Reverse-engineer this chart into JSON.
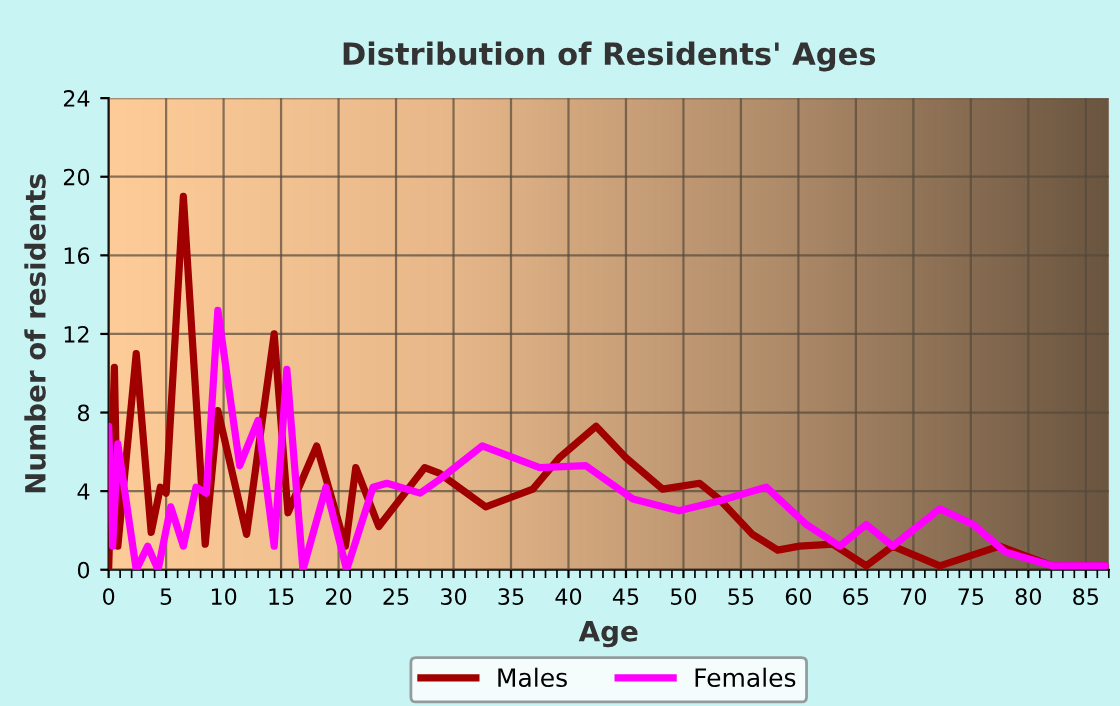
{
  "chart_data": {
    "type": "line",
    "title": "Distribution of Residents' Ages",
    "xlabel": "Age",
    "ylabel": "Number of residents",
    "xlim": [
      0,
      87
    ],
    "xticks": [
      0,
      5,
      10,
      15,
      20,
      25,
      30,
      35,
      40,
      45,
      50,
      55,
      60,
      65,
      70,
      75,
      80,
      85
    ],
    "ylim": [
      0,
      24
    ],
    "yticks": [
      0,
      4,
      8,
      12,
      16,
      20,
      24
    ],
    "grid": true,
    "legend": "bottom",
    "marker": "none",
    "line_style": "solid",
    "series": [
      {
        "name": "Males",
        "color": "#a00000",
        "x": [
          0,
          0.5,
          0.8,
          2.4,
          3.7,
          4.5,
          5.0,
          6.5,
          8.4,
          9.5,
          12,
          14.4,
          15.6,
          18.1,
          20.6,
          21.5,
          23.5,
          27.5,
          28.8,
          32.8,
          36.9,
          39.2,
          42.4,
          45,
          48.2,
          51.4,
          53.1,
          56,
          58.2,
          60.1,
          63,
          65.9,
          68.2,
          72.3,
          77.5,
          82.1,
          86.7
        ],
        "values": [
          0,
          10.3,
          1.2,
          11,
          1.9,
          4.2,
          3.9,
          19,
          1.3,
          8.1,
          1.8,
          12,
          2.9,
          6.3,
          1.2,
          5.2,
          2.2,
          5.2,
          4.9,
          3.2,
          4.1,
          5.7,
          7.3,
          5.7,
          4.1,
          4.4,
          3.6,
          1.8,
          1.0,
          1.2,
          1.3,
          0.2,
          1.2,
          0.2,
          1.2,
          0.2,
          0.2
        ]
      },
      {
        "name": "Females",
        "color": "#ff00ff",
        "x": [
          0,
          0.35,
          0.8,
          2.4,
          3.4,
          4.3,
          5.4,
          6.5,
          7.6,
          8.5,
          9.5,
          11.4,
          13,
          14.4,
          15.5,
          16.9,
          18.9,
          20.7,
          23,
          24.2,
          27.1,
          28.8,
          32.5,
          37.5,
          41.5,
          45.6,
          49.6,
          53.1,
          57.2,
          60.7,
          63.6,
          65.9,
          68.2,
          72.3,
          75.2,
          78,
          82.1,
          86.7
        ],
        "values": [
          7.3,
          1.2,
          6.4,
          0,
          1.2,
          0,
          3.2,
          1.2,
          4.2,
          3.9,
          13.2,
          5.3,
          7.6,
          1.2,
          10.2,
          0,
          4.2,
          0,
          4.2,
          4.4,
          3.9,
          4.6,
          6.3,
          5.2,
          5.3,
          3.6,
          3.0,
          3.5,
          4.2,
          2.3,
          1.2,
          2.3,
          1.2,
          3.1,
          2.3,
          0.9,
          0.2,
          0.2
        ]
      }
    ]
  }
}
